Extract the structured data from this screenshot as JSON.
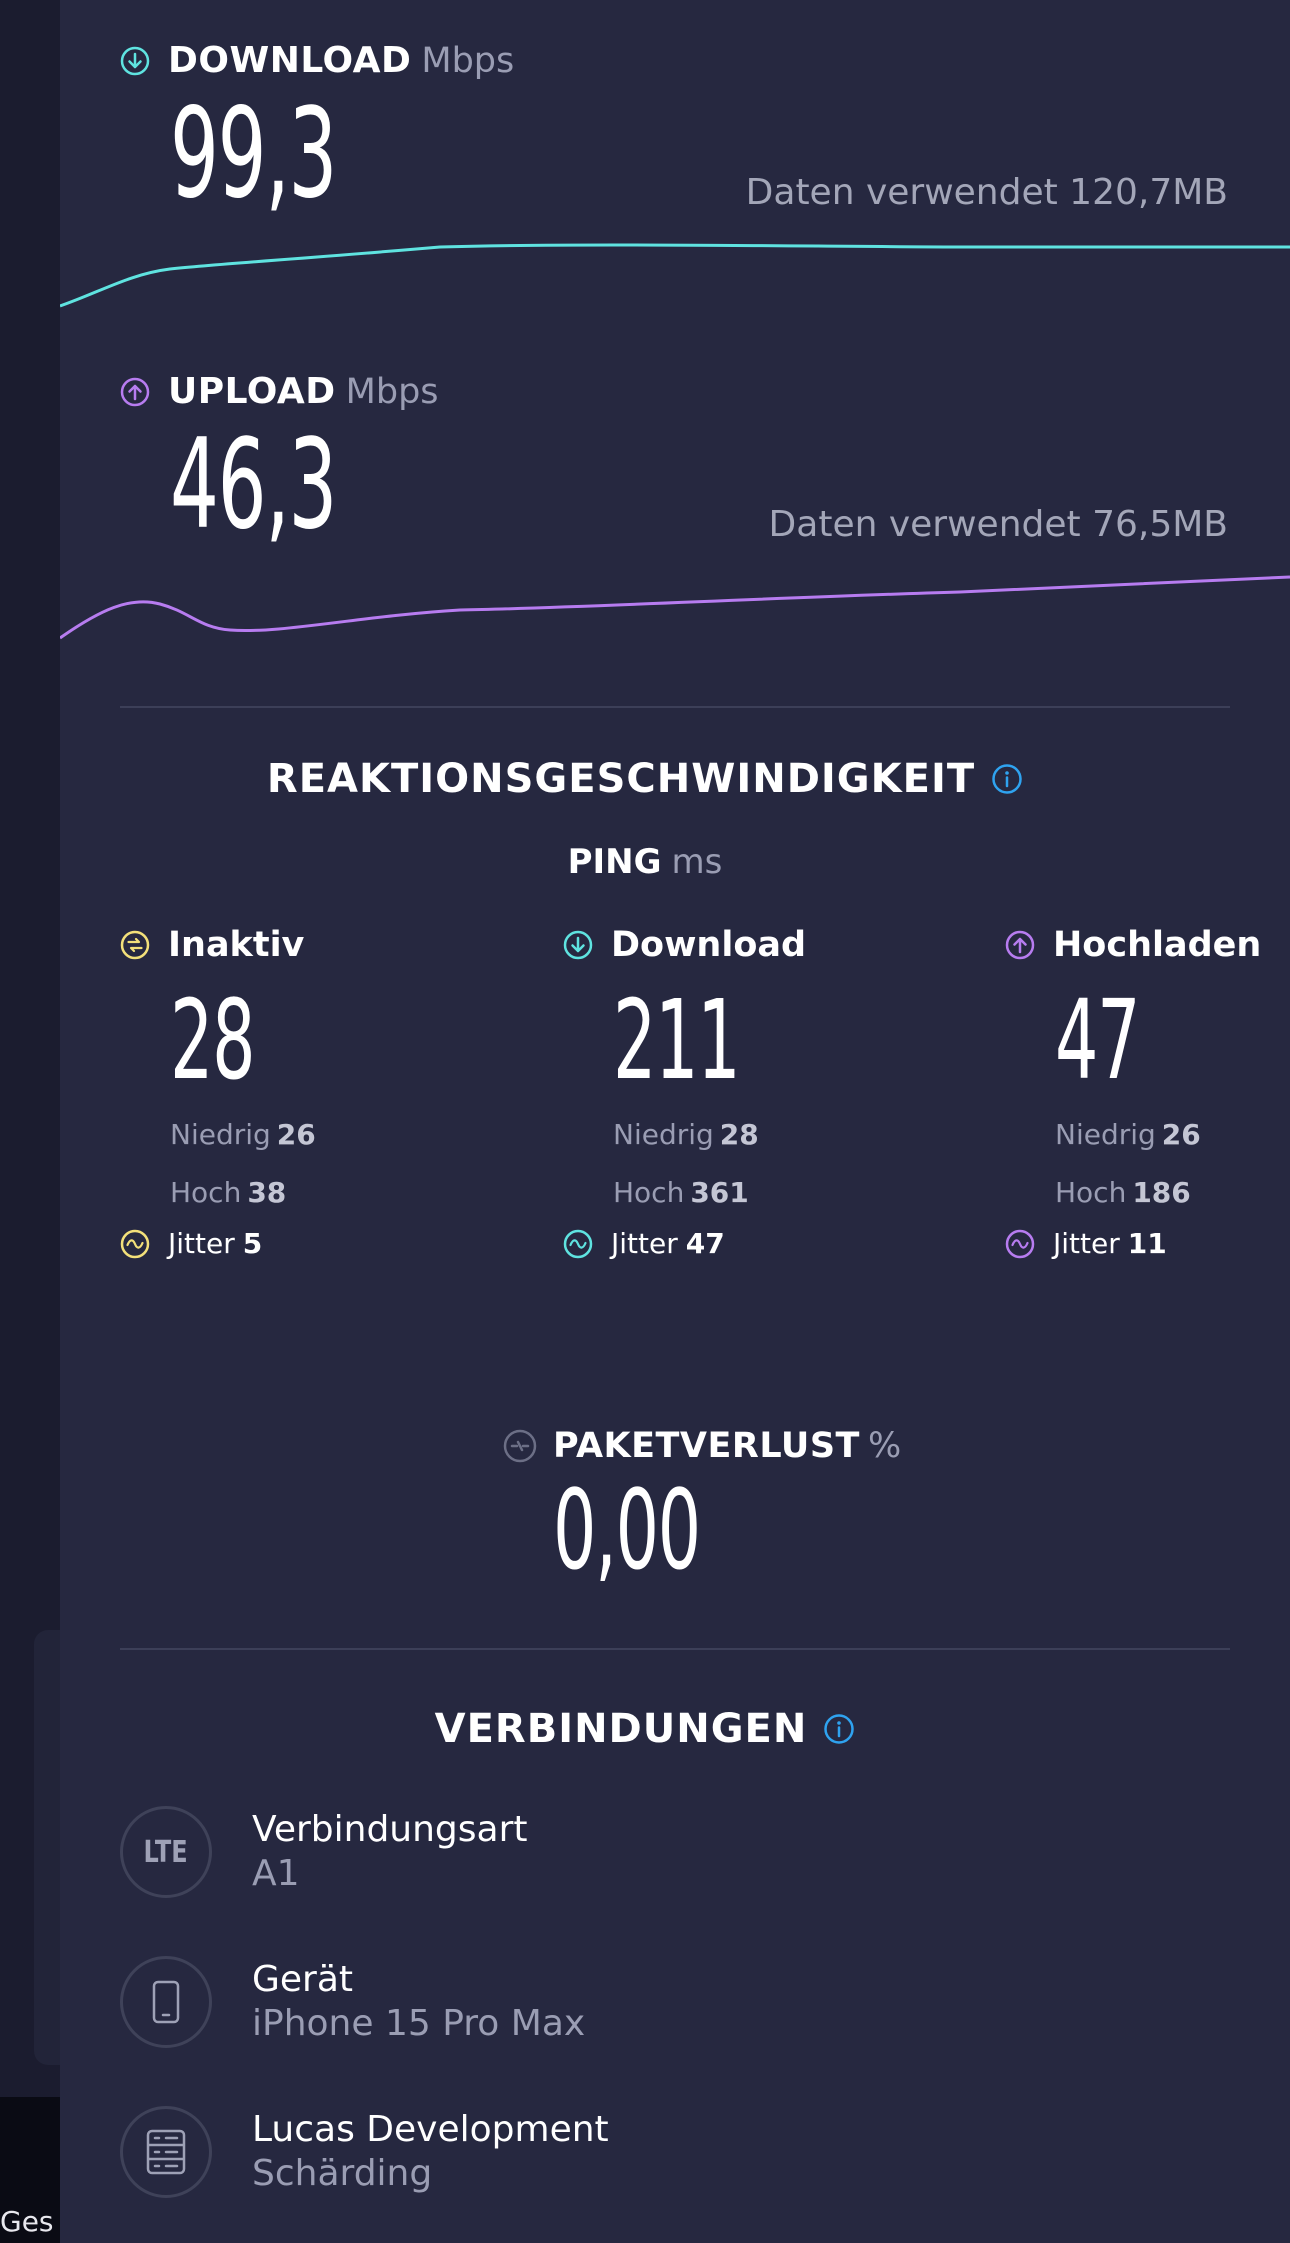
{
  "download": {
    "label": "DOWNLOAD",
    "unit": "Mbps",
    "value": "99,3",
    "data_used": "Daten verwendet 120,7MB",
    "color": "#5fe3e0"
  },
  "upload": {
    "label": "UPLOAD",
    "unit": "Mbps",
    "value": "46,3",
    "data_used": "Daten verwendet 76,5MB",
    "color": "#b77cf0"
  },
  "responsiveness": {
    "title": "REAKTIONSGESCHWINDIGKEIT",
    "ping_label": "PING",
    "ping_unit": "ms",
    "columns": [
      {
        "name": "Inaktiv",
        "value": "28",
        "low_label": "Niedrig",
        "low": "26",
        "high_label": "Hoch",
        "high": "38",
        "jitter_label": "Jitter",
        "jitter": "5",
        "color": "#f3e07a",
        "icon": "idle-icon"
      },
      {
        "name": "Download",
        "value": "211",
        "low_label": "Niedrig",
        "low": "28",
        "high_label": "Hoch",
        "high": "361",
        "jitter_label": "Jitter",
        "jitter": "47",
        "color": "#5fe3e0",
        "icon": "download-arrow-icon"
      },
      {
        "name": "Hochladen",
        "value": "47",
        "low_label": "Niedrig",
        "low": "26",
        "high_label": "Hoch",
        "high": "186",
        "jitter_label": "Jitter",
        "jitter": "11",
        "color": "#b77cf0",
        "icon": "upload-arrow-icon"
      }
    ]
  },
  "packet_loss": {
    "label": "PAKETVERLUST",
    "unit": "%",
    "value": "0,00"
  },
  "connections": {
    "title": "VERBINDUNGEN",
    "items": [
      {
        "badge": "LTE",
        "title": "Verbindungsart",
        "subtitle": "A1"
      },
      {
        "badge": "",
        "title": "Gerät",
        "subtitle": "iPhone 15 Pro Max"
      },
      {
        "badge": "",
        "title": "Lucas Development",
        "subtitle": "Schärding"
      }
    ]
  },
  "left_panel": {
    "label": "Ges"
  },
  "accent_info_color": "#2fa3f0"
}
